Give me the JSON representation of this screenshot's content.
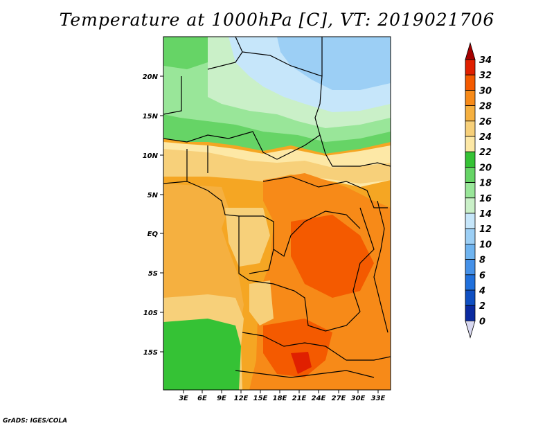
{
  "title": "Temperature at 1000hPa [C], VT: 2019021706",
  "credit": "GrADS: IGES/COLA",
  "map": {
    "lon_labels": [
      "3E",
      "6E",
      "9E",
      "12E",
      "15E",
      "18E",
      "21E",
      "24E",
      "27E",
      "30E",
      "33E"
    ],
    "lat_labels": [
      "20N",
      "15N",
      "10N",
      "5N",
      "EQ",
      "5S",
      "10S",
      "15S"
    ]
  },
  "colorbar": {
    "labels": [
      "34",
      "32",
      "30",
      "28",
      "26",
      "24",
      "22",
      "20",
      "18",
      "16",
      "14",
      "12",
      "10",
      "8",
      "6",
      "4",
      "2",
      "0"
    ],
    "colors": [
      "#a50000",
      "#e02000",
      "#f45a00",
      "#f78a18",
      "#f5b040",
      "#f7d07a",
      "#fde8a6",
      "#35c235",
      "#66d466",
      "#99e699",
      "#caf0c8",
      "#c6e6fa",
      "#9ccff5",
      "#6fb4f0",
      "#4591e8",
      "#2070dc",
      "#0f4fc2",
      "#0a2aa0",
      "#0a0a64",
      "#d8d8f0"
    ]
  }
}
